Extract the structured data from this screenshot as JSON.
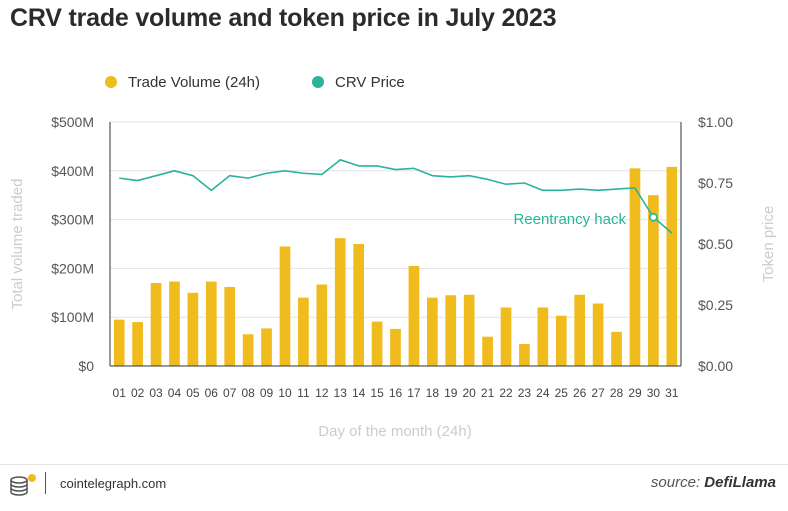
{
  "title": "CRV trade volume and token price in July 2023",
  "chart_data": {
    "type": "bar+line",
    "categories": [
      "01",
      "02",
      "03",
      "04",
      "05",
      "06",
      "07",
      "08",
      "09",
      "10",
      "11",
      "12",
      "13",
      "14",
      "15",
      "16",
      "17",
      "18",
      "19",
      "20",
      "21",
      "22",
      "23",
      "24",
      "25",
      "26",
      "27",
      "28",
      "29",
      "30",
      "31"
    ],
    "series": [
      {
        "name": "Trade Volume (24h)",
        "type": "bar",
        "axis": "left",
        "color": "#f0bb1c",
        "values": [
          95,
          90,
          170,
          173,
          150,
          173,
          162,
          65,
          77,
          245,
          140,
          167,
          262,
          250,
          91,
          76,
          205,
          140,
          145,
          146,
          60,
          120,
          45,
          120,
          103,
          146,
          128,
          70,
          405,
          350,
          408
        ]
      },
      {
        "name": "CRV Price",
        "type": "line",
        "axis": "right",
        "color": "#2bb39b",
        "values": [
          0.77,
          0.76,
          0.78,
          0.8,
          0.78,
          0.72,
          0.78,
          0.77,
          0.79,
          0.8,
          0.79,
          0.785,
          0.845,
          0.82,
          0.82,
          0.805,
          0.81,
          0.78,
          0.775,
          0.78,
          0.765,
          0.745,
          0.75,
          0.72,
          0.72,
          0.725,
          0.72,
          0.725,
          0.73,
          0.61,
          0.545
        ]
      }
    ],
    "y_left": {
      "label": "Total volume traded",
      "range": [
        0,
        500
      ],
      "ticks": [
        0,
        100,
        200,
        300,
        400,
        500
      ],
      "tick_labels": [
        "$0",
        "$100M",
        "$200M",
        "$300M",
        "$400M",
        "$500M"
      ]
    },
    "y_right": {
      "label": "Token price",
      "range": [
        0,
        1
      ],
      "ticks": [
        0,
        0.25,
        0.5,
        0.75,
        1
      ],
      "tick_labels": [
        "$0.00",
        "$0.25",
        "$0.50",
        "$0.75",
        "$1.00"
      ]
    },
    "xlabel": "Day of the month (24h)",
    "grid": "horizontal",
    "legend": "top-left",
    "annotation": {
      "text": "Reentrancy hack",
      "day": "30",
      "value": 0.61
    }
  },
  "footer": {
    "brand": "cointelegraph.com",
    "source_prefix": "source:",
    "source_name": "DefiLlama"
  }
}
